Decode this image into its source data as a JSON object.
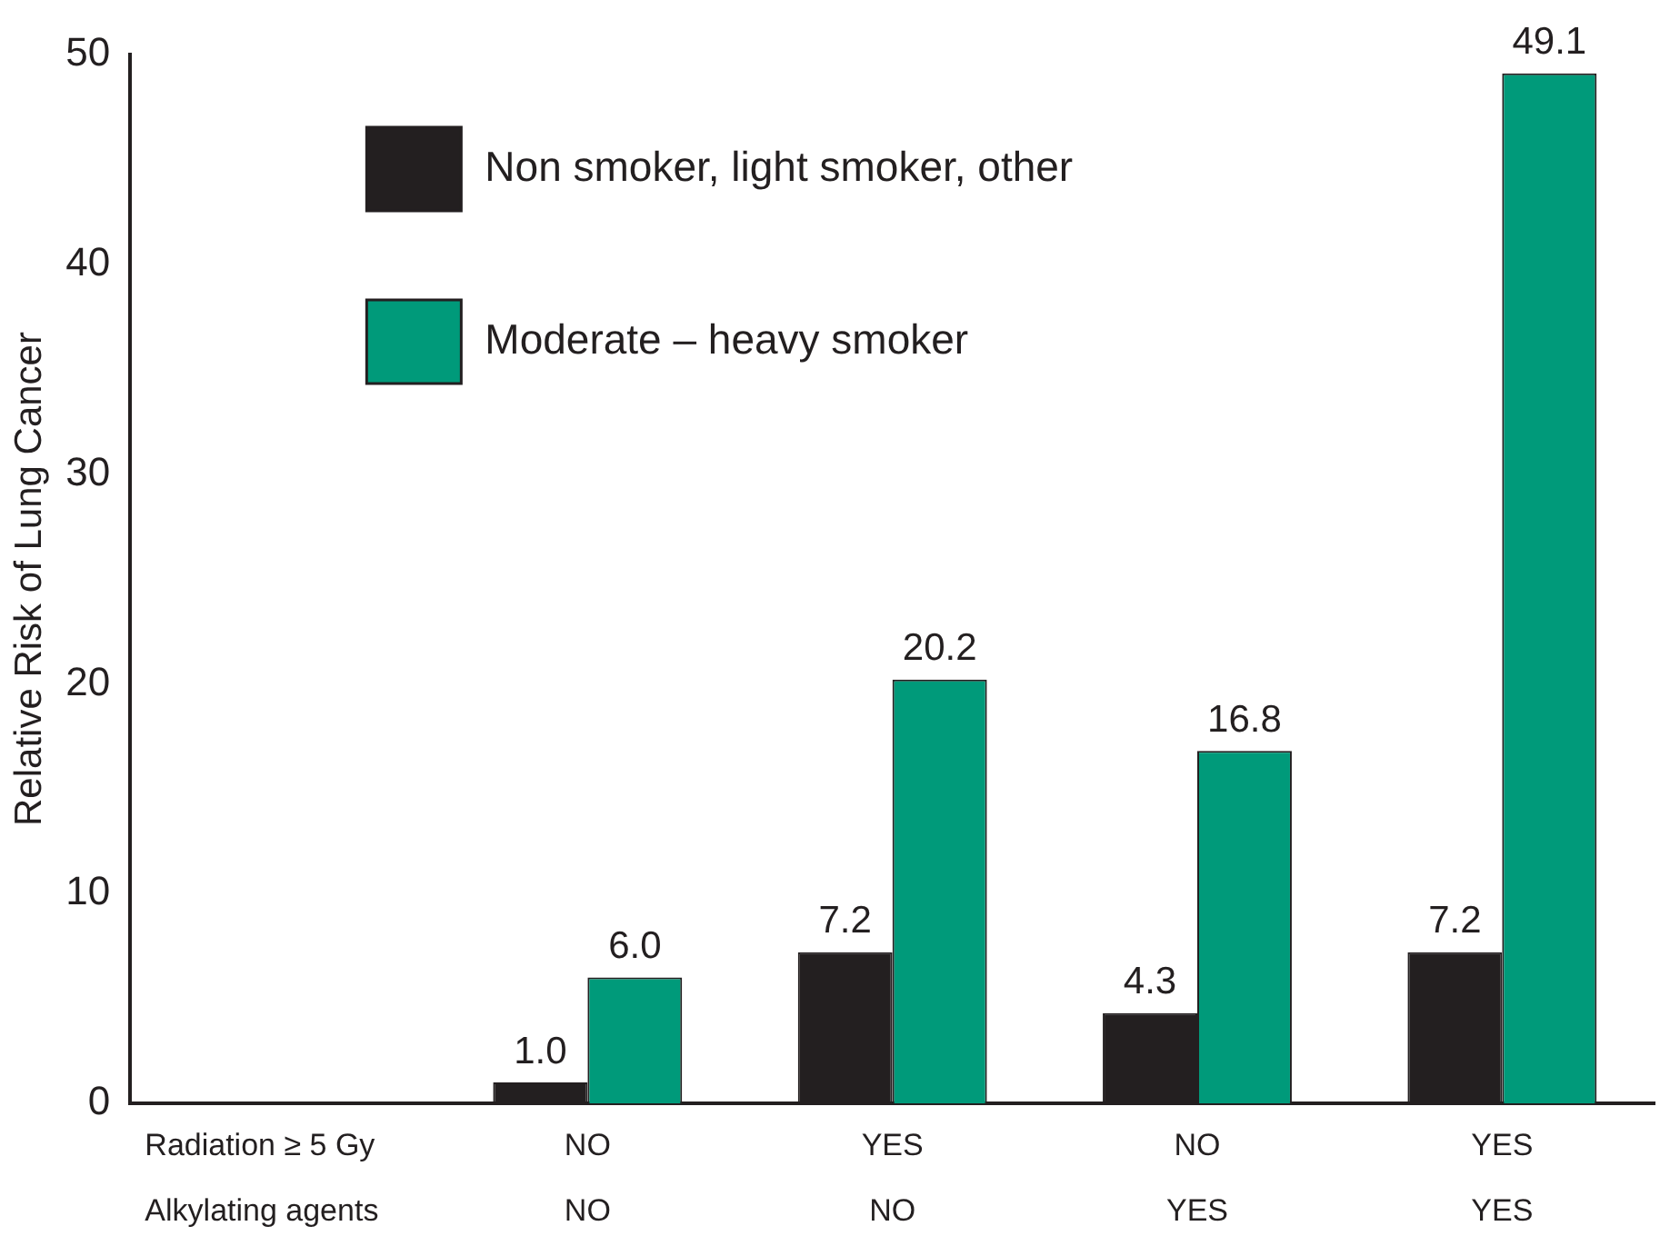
{
  "chart_data": {
    "type": "bar",
    "ylabel": "Relative Risk of Lung Cancer",
    "categories": [
      null,
      "NO\nNO",
      "YES\nNO",
      "NO\nYES",
      "YES\nYES"
    ],
    "annotations": [
      "Radiation ≥ 5 Gy",
      "Alkylating agents"
    ],
    "series": [
      {
        "name": "Non smoker, light smoker, other",
        "color": "#231f20",
        "values": [
          null,
          1.0,
          7.2,
          4.3,
          7.2
        ],
        "value_labels": [
          null,
          "1.0",
          "7.2",
          "4.3",
          "7.2"
        ]
      },
      {
        "name": "Moderate – heavy smoker",
        "color": "#009a7a",
        "values": [
          null,
          6.0,
          20.2,
          16.8,
          49.1
        ],
        "value_labels": [
          null,
          "6.0",
          "20.2",
          "16.8",
          "49.1"
        ]
      }
    ],
    "ylim": [
      0,
      50
    ],
    "yticks": [
      0,
      10,
      20,
      30,
      40,
      50
    ],
    "grid": false,
    "legend": "top left"
  }
}
